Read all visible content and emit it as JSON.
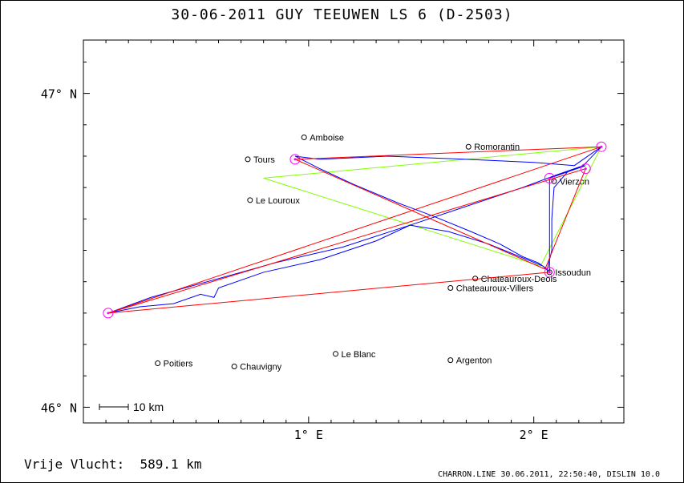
{
  "title": "30-06-2011   GUY TEEUWEN   LS 6 (D-2503)",
  "footer": {
    "distance_label": "Vrije Vlucht:",
    "distance_value": "589.1 km",
    "credit": "CHARRON.LINE 30.06.2011, 22:50:40, DISLIN 10.0"
  },
  "colors": {
    "track": "#0000ff",
    "triangle": "#80ff00",
    "legs": "#ff0000",
    "turnpoint": "#ff00ff"
  },
  "chart_data": {
    "type": "line",
    "title": "30-06-2011   GUY TEEUWEN   LS 6 (D-2503)",
    "x_range": [
      0.0,
      2.4
    ],
    "y_range": [
      45.95,
      47.17
    ],
    "x_ticks": [
      {
        "value": 1,
        "label": "1° E"
      },
      {
        "value": 2,
        "label": "2° E"
      }
    ],
    "y_ticks": [
      {
        "value": 47,
        "label": "47° N"
      },
      {
        "value": 46,
        "label": "46° N"
      }
    ],
    "scale_bar": "10 km",
    "places": [
      {
        "name": "Amboise",
        "lon": 0.98,
        "lat": 46.86
      },
      {
        "name": "Romorantin",
        "lon": 1.71,
        "lat": 46.83
      },
      {
        "name": "Tours",
        "lon": 0.73,
        "lat": 46.79
      },
      {
        "name": "Le Louroux",
        "lon": 0.74,
        "lat": 46.66
      },
      {
        "name": "Vierzon",
        "lon": 2.09,
        "lat": 46.72
      },
      {
        "name": "Issoudun",
        "lon": 2.07,
        "lat": 46.43
      },
      {
        "name": "Chateauroux-Deols",
        "lon": 1.74,
        "lat": 46.41
      },
      {
        "name": "Chateauroux-Villers",
        "lon": 1.63,
        "lat": 46.38
      },
      {
        "name": "Le Blanc",
        "lon": 1.12,
        "lat": 46.17
      },
      {
        "name": "Argenton",
        "lon": 1.63,
        "lat": 46.15
      },
      {
        "name": "Poitiers",
        "lon": 0.33,
        "lat": 46.14
      },
      {
        "name": "Chauvigny",
        "lon": 0.67,
        "lat": 46.13
      }
    ],
    "turnpoints": [
      {
        "lon": 2.07,
        "lat": 46.43
      },
      {
        "lon": 0.11,
        "lat": 46.3
      },
      {
        "lon": 2.3,
        "lat": 46.83
      },
      {
        "lon": 0.94,
        "lat": 46.79
      },
      {
        "lon": 2.23,
        "lat": 46.76
      },
      {
        "lon": 2.07,
        "lat": 46.73
      }
    ],
    "legs": [
      {
        "from": [
          2.07,
          46.43
        ],
        "to": [
          0.11,
          46.3
        ]
      },
      {
        "from": [
          0.11,
          46.3
        ],
        "to": [
          2.3,
          46.83
        ]
      },
      {
        "from": [
          2.3,
          46.83
        ],
        "to": [
          0.94,
          46.79
        ]
      },
      {
        "from": [
          0.94,
          46.79
        ],
        "to": [
          2.05,
          46.44
        ]
      },
      {
        "from": [
          2.05,
          46.44
        ],
        "to": [
          2.23,
          46.76
        ]
      },
      {
        "from": [
          2.23,
          46.76
        ],
        "to": [
          0.11,
          46.3
        ]
      }
    ],
    "triangle": [
      [
        0.8,
        46.73
      ],
      [
        2.3,
        46.83
      ],
      [
        2.03,
        46.45
      ],
      [
        0.8,
        46.73
      ]
    ],
    "track": [
      [
        2.07,
        46.43
      ],
      [
        2.04,
        46.45
      ],
      [
        1.8,
        46.52
      ],
      [
        1.62,
        46.56
      ],
      [
        1.45,
        46.58
      ],
      [
        1.3,
        46.53
      ],
      [
        1.05,
        46.47
      ],
      [
        0.8,
        46.43
      ],
      [
        0.6,
        46.38
      ],
      [
        0.58,
        46.35
      ],
      [
        0.52,
        46.36
      ],
      [
        0.4,
        46.33
      ],
      [
        0.25,
        46.32
      ],
      [
        0.11,
        46.3
      ],
      [
        0.3,
        46.35
      ],
      [
        0.55,
        46.4
      ],
      [
        0.85,
        46.46
      ],
      [
        1.15,
        46.51
      ],
      [
        1.45,
        46.58
      ],
      [
        1.7,
        46.64
      ],
      [
        1.95,
        46.7
      ],
      [
        2.1,
        46.74
      ],
      [
        2.22,
        46.77
      ],
      [
        2.3,
        46.83
      ],
      [
        2.18,
        46.77
      ],
      [
        2.0,
        46.78
      ],
      [
        1.7,
        46.79
      ],
      [
        1.35,
        46.8
      ],
      [
        1.05,
        46.79
      ],
      [
        0.94,
        46.8
      ],
      [
        1.05,
        46.76
      ],
      [
        1.2,
        46.71
      ],
      [
        1.4,
        46.65
      ],
      [
        1.55,
        46.61
      ],
      [
        1.72,
        46.56
      ],
      [
        1.85,
        46.52
      ],
      [
        1.95,
        46.48
      ],
      [
        2.02,
        46.46
      ],
      [
        2.06,
        46.44
      ],
      [
        2.08,
        46.5
      ],
      [
        2.08,
        46.6
      ],
      [
        2.09,
        46.7
      ],
      [
        2.15,
        46.75
      ],
      [
        2.23,
        46.77
      ],
      [
        2.07,
        46.73
      ],
      [
        2.07,
        46.6
      ],
      [
        2.07,
        46.5
      ],
      [
        2.07,
        46.43
      ]
    ]
  }
}
